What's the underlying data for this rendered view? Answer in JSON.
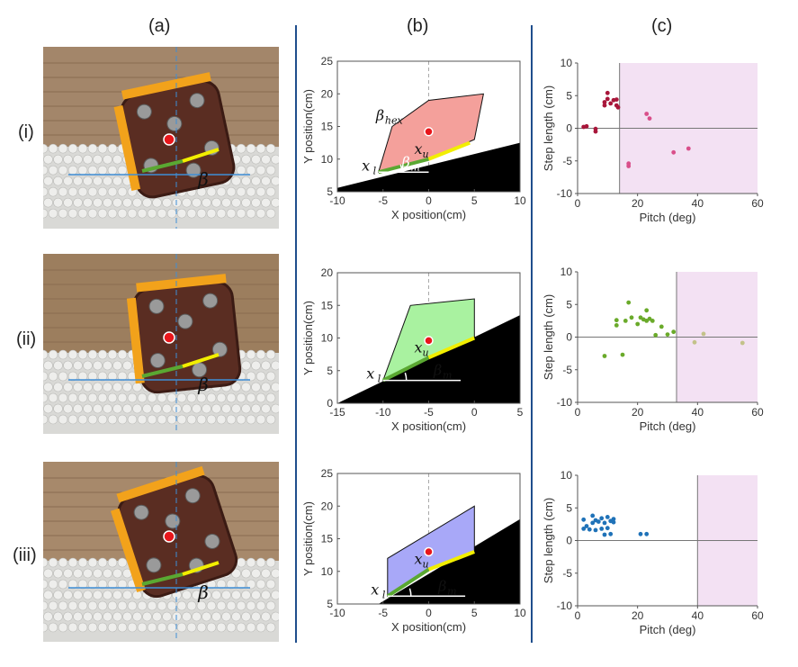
{
  "column_labels": [
    "(a)",
    "(b)",
    "(c)"
  ],
  "row_labels": [
    "(i)",
    "(ii)",
    "(iii)"
  ],
  "photo_annotation": "β",
  "colors": {
    "divider": "#1f4e8c",
    "lower_segment": "#5aa832",
    "upper_segment": "#f2ee00",
    "marker": "#e8161b",
    "ground": "#000000",
    "infeasible_region": "#f3e1f3"
  },
  "b_panels": [
    {
      "xlabel": "X position(cm)",
      "ylabel": "Y position(cm)",
      "xticks": [
        "-10",
        "-5",
        "0",
        "5",
        "10"
      ],
      "yticks": [
        "5",
        "10",
        "15",
        "20",
        "25"
      ],
      "xlim": [
        -10,
        10
      ],
      "ylim": [
        5,
        25
      ],
      "hex_color": "#f4a09b",
      "polygon": [
        [
          -5.5,
          8
        ],
        [
          -4,
          15
        ],
        [
          0,
          19
        ],
        [
          6,
          20
        ],
        [
          5,
          13
        ],
        [
          0,
          10
        ]
      ],
      "centroid": [
        0,
        14.2
      ],
      "ground": [
        [
          -10,
          5
        ],
        [
          -10,
          5.6
        ],
        [
          10,
          12.5
        ],
        [
          10,
          5
        ]
      ],
      "lower": [
        [
          -5.5,
          8
        ],
        [
          0,
          10
        ]
      ],
      "upper": [
        [
          0,
          10
        ],
        [
          4.5,
          12.5
        ]
      ],
      "beta_m_line": [
        [
          -5.5,
          8
        ],
        [
          0,
          8
        ]
      ],
      "labels": {
        "hex": "β",
        "hex_sub": "hex",
        "xl": "x",
        "xl_sub": "l",
        "xu": "x",
        "xu_sub": "u",
        "bm": "β",
        "bm_sub": "m"
      }
    },
    {
      "xlabel": "X position(cm)",
      "ylabel": "Y position(cm)",
      "xticks": [
        "-15",
        "-10",
        "-5",
        "0",
        "5"
      ],
      "yticks": [
        "0",
        "5",
        "10",
        "15",
        "20"
      ],
      "xlim": [
        -15,
        5
      ],
      "ylim": [
        0,
        20
      ],
      "hex_color": "#a9f2a0",
      "polygon": [
        [
          -10,
          3.5
        ],
        [
          -7,
          15
        ],
        [
          0,
          16
        ],
        [
          0,
          10
        ],
        [
          -5,
          7
        ]
      ],
      "centroid": [
        -5,
        9.6
      ],
      "ground": [
        [
          -15,
          0
        ],
        [
          5,
          13.5
        ],
        [
          5,
          0
        ]
      ],
      "lower": [
        [
          -10,
          3.5
        ],
        [
          -5,
          7
        ]
      ],
      "upper": [
        [
          -5,
          7
        ],
        [
          0,
          10
        ]
      ],
      "beta_m_line": [
        [
          -10,
          3.5
        ],
        [
          -1.5,
          3.5
        ]
      ],
      "labels": {
        "hex": "",
        "hex_sub": "",
        "xl": "x",
        "xl_sub": "l",
        "xu": "x",
        "xu_sub": "u",
        "bm": "β",
        "bm_sub": "m"
      }
    },
    {
      "xlabel": "X position(cm)",
      "ylabel": "Y position(cm)",
      "xticks": [
        "-10",
        "-5",
        "0",
        "5",
        "10"
      ],
      "yticks": [
        "5",
        "10",
        "15",
        "20",
        "25"
      ],
      "xlim": [
        -10,
        10
      ],
      "ylim": [
        5,
        25
      ],
      "hex_color": "#a8a8f8",
      "polygon": [
        [
          -4.5,
          6.2
        ],
        [
          -4.5,
          12
        ],
        [
          5,
          20
        ],
        [
          5,
          13
        ],
        [
          0,
          10.3
        ]
      ],
      "centroid": [
        0,
        13
      ],
      "ground": [
        [
          -10,
          5
        ],
        [
          -5.5,
          5
        ],
        [
          10,
          18
        ],
        [
          10,
          5
        ]
      ],
      "lower": [
        [
          -4.5,
          6.2
        ],
        [
          0,
          10.3
        ]
      ],
      "upper": [
        [
          0,
          10.3
        ],
        [
          5,
          13
        ]
      ],
      "beta_m_line": [
        [
          -4.5,
          6.2
        ],
        [
          4,
          6.2
        ]
      ],
      "labels": {
        "hex": "",
        "hex_sub": "",
        "xl": "x",
        "xl_sub": "l",
        "xu": "x",
        "xu_sub": "u",
        "bm": "β",
        "bm_sub": "m"
      }
    }
  ],
  "chart_data": [
    {
      "type": "scatter",
      "xlabel": "Pitch (deg)",
      "ylabel": "Step length (cm)",
      "xlim": [
        0,
        60
      ],
      "ylim": [
        -10,
        10
      ],
      "xticks": [
        "0",
        "20",
        "40",
        "60"
      ],
      "yticks": [
        "-10",
        "-5",
        "0",
        "5",
        "10"
      ],
      "threshold_x": 14,
      "shaded_region": [
        14,
        60
      ],
      "series": [
        {
          "color": "#a8163a",
          "points": [
            [
              2,
              0.2
            ],
            [
              3,
              0.3
            ],
            [
              6,
              -0.1
            ],
            [
              6,
              -0.5
            ],
            [
              9,
              3.5
            ],
            [
              9,
              4
            ],
            [
              10,
              4.5
            ],
            [
              10,
              5.4
            ],
            [
              11,
              3.8
            ],
            [
              12,
              4.3
            ],
            [
              13,
              3.5
            ],
            [
              13,
              4.4
            ],
            [
              13.5,
              3.2
            ]
          ]
        },
        {
          "color": "#d94f8a",
          "points": [
            [
              17,
              -5.4
            ],
            [
              17,
              -5.8
            ],
            [
              23,
              2.2
            ],
            [
              24,
              1.5
            ],
            [
              32,
              -3.7
            ],
            [
              37,
              -3.1
            ]
          ]
        }
      ]
    },
    {
      "type": "scatter",
      "xlabel": "Pitch (deg)",
      "ylabel": "Step length (cm)",
      "xlim": [
        0,
        60
      ],
      "ylim": [
        -10,
        10
      ],
      "xticks": [
        "0",
        "20",
        "40",
        "60"
      ],
      "yticks": [
        "-10",
        "-5",
        "0",
        "5",
        "10"
      ],
      "threshold_x": 33,
      "shaded_region": [
        33,
        60
      ],
      "series": [
        {
          "color": "#6aaa2a",
          "points": [
            [
              9,
              -2.9
            ],
            [
              13,
              1.8
            ],
            [
              13,
              2.6
            ],
            [
              15,
              -2.7
            ],
            [
              16,
              2.5
            ],
            [
              17,
              5.3
            ],
            [
              18,
              3.0
            ],
            [
              20,
              2.0
            ],
            [
              21,
              3.0
            ],
            [
              22,
              2.7
            ],
            [
              23,
              4.1
            ],
            [
              23,
              2.5
            ],
            [
              24,
              2.8
            ],
            [
              25,
              2.5
            ],
            [
              26,
              0.3
            ],
            [
              28,
              1.6
            ],
            [
              30,
              0.4
            ],
            [
              32,
              0.8
            ]
          ]
        },
        {
          "color": "#c3c28a",
          "points": [
            [
              39,
              -0.8
            ],
            [
              42,
              0.5
            ],
            [
              55,
              -0.9
            ]
          ]
        }
      ]
    },
    {
      "type": "scatter",
      "xlabel": "Pitch (deg)",
      "ylabel": "Step length (cm)",
      "xlim": [
        0,
        60
      ],
      "ylim": [
        -10,
        10
      ],
      "xticks": [
        "0",
        "20",
        "40",
        "60"
      ],
      "yticks": [
        "-10",
        "-5",
        "0",
        "5",
        "10"
      ],
      "threshold_x": 40,
      "shaded_region": [
        40,
        60
      ],
      "series": [
        {
          "color": "#1f72b8",
          "points": [
            [
              2,
              3.2
            ],
            [
              2,
              1.8
            ],
            [
              3,
              2.2
            ],
            [
              4,
              1.7
            ],
            [
              5,
              3.8
            ],
            [
              5,
              2.7
            ],
            [
              6,
              3.1
            ],
            [
              6,
              1.6
            ],
            [
              7,
              2.9
            ],
            [
              8,
              3.4
            ],
            [
              8,
              1.8
            ],
            [
              9,
              2.7
            ],
            [
              9,
              0.9
            ],
            [
              10,
              3.6
            ],
            [
              10,
              1.9
            ],
            [
              11,
              3.0
            ],
            [
              11,
              1.0
            ],
            [
              12,
              2.8
            ],
            [
              12,
              3.3
            ],
            [
              21,
              1.0
            ],
            [
              23,
              1.0
            ]
          ]
        }
      ]
    }
  ]
}
